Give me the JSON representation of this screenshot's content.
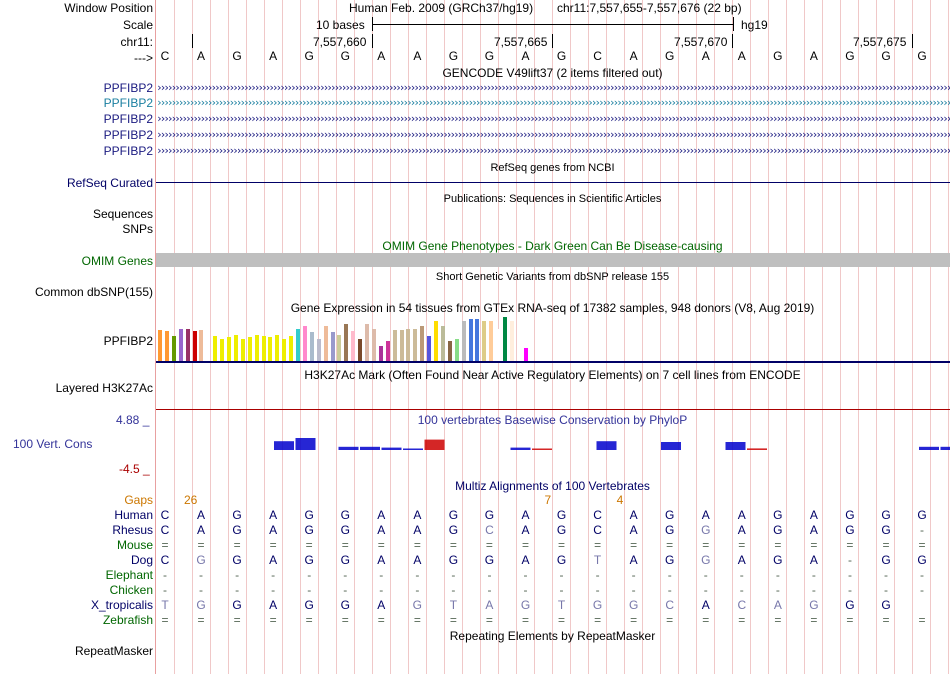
{
  "header": {
    "window_position_label": "Window Position",
    "scale_label": "Scale",
    "chr_label": "chr11:",
    "arrow_label": "--->",
    "assembly": "Human Feb. 2009 (GRCh37/hg19)",
    "position": "chr11:7,557,655-7,557,676 (22 bp)",
    "scale_text": "10 bases",
    "db": "hg19",
    "ticks": [
      "7,557,660",
      "7,557,665",
      "7,557,670",
      "7,557,675"
    ]
  },
  "sequence": [
    "C",
    "A",
    "G",
    "A",
    "G",
    "G",
    "A",
    "A",
    "G",
    "G",
    "A",
    "G",
    "C",
    "A",
    "G",
    "A",
    "A",
    "G",
    "A",
    "G",
    "G",
    "G"
  ],
  "gencode": {
    "title": "GENCODE V49lift37 (2 items filtered out)",
    "genes": [
      "PPFIBP2",
      "PPFIBP2",
      "PPFIBP2",
      "PPFIBP2",
      "PPFIBP2"
    ]
  },
  "refseq": {
    "title": "RefSeq genes from NCBI",
    "label": "RefSeq Curated"
  },
  "publications": {
    "title": "Publications: Sequences in Scientific Articles",
    "label1": "Sequences",
    "label2": "SNPs"
  },
  "omim": {
    "title": "OMIM Gene Phenotypes - Dark Green Can Be Disease-causing",
    "label": "OMIM Genes"
  },
  "dbsnp": {
    "title": "Short Genetic Variants from dbSNP release 155",
    "label": "Common dbSNP(155)"
  },
  "gtex": {
    "title": "Gene Expression in 54 tissues from GTEx RNA-seq of 17382 samples, 948 donors (V8, Aug 2019)",
    "label": "PPFIBP2",
    "bars": [
      {
        "v": 0.69,
        "c": "#ff9933"
      },
      {
        "v": 0.66,
        "c": "#ff9933"
      },
      {
        "v": 0.55,
        "c": "#669900"
      },
      {
        "v": 0.72,
        "c": "#9966cc"
      },
      {
        "v": 0.72,
        "c": "#993366"
      },
      {
        "v": 0.66,
        "c": "#cc0000"
      },
      {
        "v": 0.69,
        "c": "#eebb99"
      },
      {
        "v": 0.0,
        "c": "#ffffff"
      },
      {
        "v": 0.55,
        "c": "#eeee00"
      },
      {
        "v": 0.5,
        "c": "#eeee00"
      },
      {
        "v": 0.53,
        "c": "#eeee00"
      },
      {
        "v": 0.58,
        "c": "#eeee00"
      },
      {
        "v": 0.5,
        "c": "#eeee00"
      },
      {
        "v": 0.53,
        "c": "#eeee00"
      },
      {
        "v": 0.58,
        "c": "#eeee00"
      },
      {
        "v": 0.55,
        "c": "#eeee00"
      },
      {
        "v": 0.53,
        "c": "#eeee00"
      },
      {
        "v": 0.58,
        "c": "#eeee00"
      },
      {
        "v": 0.5,
        "c": "#eeee00"
      },
      {
        "v": 0.55,
        "c": "#eeee00"
      },
      {
        "v": 0.72,
        "c": "#33cccc"
      },
      {
        "v": 0.78,
        "c": "#ff88cc"
      },
      {
        "v": 0.64,
        "c": "#aabbcc"
      },
      {
        "v": 0.5,
        "c": "#bbbbcc"
      },
      {
        "v": 0.78,
        "c": "#eebb99"
      },
      {
        "v": 0.64,
        "c": "#9999cc"
      },
      {
        "v": 0.58,
        "c": "#cccc99"
      },
      {
        "v": 0.83,
        "c": "#997755"
      },
      {
        "v": 0.66,
        "c": "#ffbbcc"
      },
      {
        "v": 0.5,
        "c": "#7a4a2a"
      },
      {
        "v": 0.83,
        "c": "#ddbbaa"
      },
      {
        "v": 0.72,
        "c": "#ddbbaa"
      },
      {
        "v": 0.33,
        "c": "#aa3399"
      },
      {
        "v": 0.44,
        "c": "#cc3399"
      },
      {
        "v": 0.69,
        "c": "#ccbb99"
      },
      {
        "v": 0.69,
        "c": "#ccbb99"
      },
      {
        "v": 0.72,
        "c": "#ccbb99"
      },
      {
        "v": 0.72,
        "c": "#ccbb99"
      },
      {
        "v": 0.78,
        "c": "#bb9977"
      },
      {
        "v": 0.55,
        "c": "#5555dd"
      },
      {
        "v": 0.89,
        "c": "#ffdd00"
      },
      {
        "v": 0.78,
        "c": "#bbbb99"
      },
      {
        "v": 0.44,
        "c": "#886644"
      },
      {
        "v": 0.5,
        "c": "#88dd88"
      },
      {
        "v": 0.89,
        "c": "#bbbbbb"
      },
      {
        "v": 0.94,
        "c": "#4477dd"
      },
      {
        "v": 0.94,
        "c": "#4477dd"
      },
      {
        "v": 0.89,
        "c": "#ddcc88"
      },
      {
        "v": 0.89,
        "c": "#ffcc99"
      },
      {
        "v": 0.72,
        "c": "#ffffff"
      },
      {
        "v": 0.97,
        "c": "#008844"
      },
      {
        "v": 0.89,
        "c": "#ffeedd"
      },
      {
        "v": 0.0,
        "c": "#ffffff"
      },
      {
        "v": 0.28,
        "c": "#ff00ff"
      }
    ]
  },
  "h3k27ac": {
    "title": "H3K27Ac Mark (Often Found Near Active Regulatory Elements) on 7 cell lines from ENCODE",
    "label": "Layered H3K27Ac"
  },
  "phylop": {
    "title": "100 vertebrates Basewise Conservation by PhyloP",
    "label": "100 Vert. Cons",
    "max": "4.88 _",
    "min": "-4.5 _",
    "scores": [
      0.0,
      0.0,
      0.55,
      0.75,
      0.0,
      0.2,
      0.2,
      0.15,
      0.05,
      0.65,
      0.0,
      0.0,
      0.0,
      0.15,
      0.02,
      0.0,
      0.0,
      0.55,
      0.0,
      0.0,
      0.5,
      0.0,
      0.0,
      0.5,
      0.1,
      0.0,
      0.0,
      0.0,
      0.0,
      0.0,
      0.0,
      0.0,
      0.2,
      0.2,
      0.3,
      0.55,
      0.5
    ],
    "colors": [
      "#0000cc",
      "#cc0000"
    ]
  },
  "multiz": {
    "title": "Multiz Alignments of 100 Vertebrates",
    "gaps_label": "Gaps",
    "gap_counts": [
      {
        "after": 0,
        "text": "26"
      },
      {
        "after": 10,
        "text": "7"
      },
      {
        "after": 12,
        "text": "4"
      }
    ],
    "species": [
      {
        "name": "Human",
        "seq": "CAGAGGAAGGAGCAGAAGAGGG",
        "color": "#000066"
      },
      {
        "name": "Rhesus",
        "seq": "CAGAGGAAGCAGCAGGAGAGG-",
        "color": "#000066"
      },
      {
        "name": "Mouse",
        "seq": "======================",
        "color": "#006600"
      },
      {
        "name": "Dog",
        "seq": "CGGAGGAAGGAGTAGGAGA-GG",
        "color": "#000066"
      },
      {
        "name": "Elephant",
        "seq": "----------------------",
        "color": "#006600"
      },
      {
        "name": "Chicken",
        "seq": "----------------------",
        "color": "#006600"
      },
      {
        "name": "X_tropicalis",
        "seq": "TGGAGGAGTAGTGGCACAGGG",
        "color": "#000066"
      },
      {
        "name": "Zebrafish",
        "seq": "======================",
        "color": "#006600"
      }
    ]
  },
  "repeatmasker": {
    "title": "Repeating Elements by RepeatMasker",
    "label": "RepeatMasker"
  },
  "colors": {
    "navy": "#000066",
    "green": "#006600",
    "gencode_blue": "#1a1a80",
    "teal": "#1a7fa0",
    "phylop_blue": "#333399",
    "gaps_orange": "#cc7700",
    "red_line": "#aa0000"
  }
}
